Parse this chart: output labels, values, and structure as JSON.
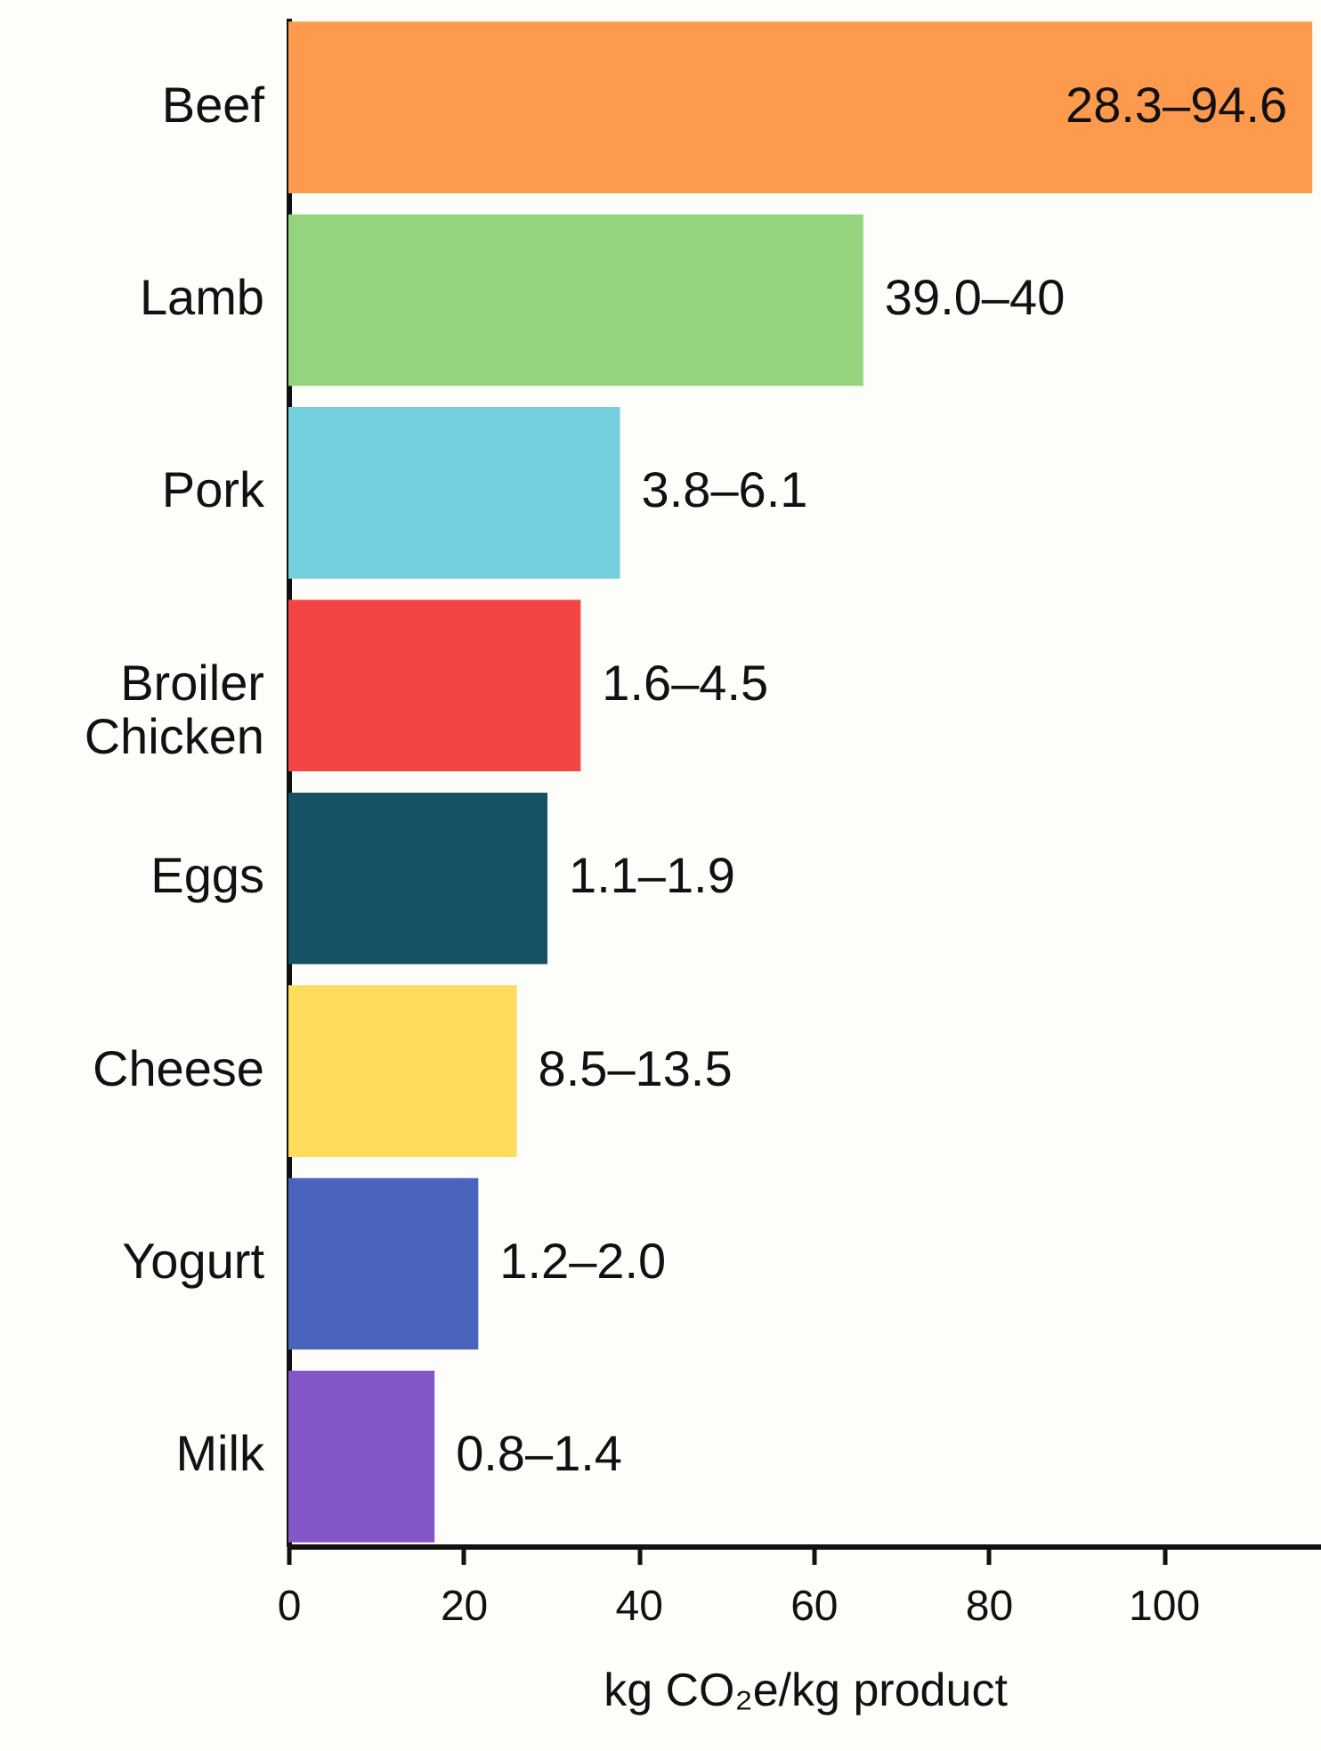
{
  "chart_data": {
    "type": "bar",
    "orientation": "horizontal",
    "xlabel": "kg CO₂e/kg product",
    "categories": [
      "Beef",
      "Lamb",
      "Pork",
      "Broiler Chicken",
      "Eggs",
      "Cheese",
      "Yogurt",
      "Milk"
    ],
    "values": [
      117,
      65.7,
      37.9,
      33.4,
      29.6,
      26.1,
      21.7,
      16.7
    ],
    "colors": [
      "#fd9a4e",
      "#94d47f",
      "#74cfdf",
      "#f44444",
      "#175166",
      "#fddc5c",
      "#4a63bd",
      "#8457c8"
    ],
    "value_labels": [
      "28.3–94.6",
      "39.0–40",
      "3.8–6.1",
      "1.6–4.5",
      "1.1–1.9",
      "8.5–13.5",
      "1.2–2.0",
      "0.8–1.4"
    ],
    "xlim": [
      0,
      118
    ],
    "xticks": [
      0,
      20,
      40,
      60,
      80,
      100
    ],
    "grid": false
  }
}
